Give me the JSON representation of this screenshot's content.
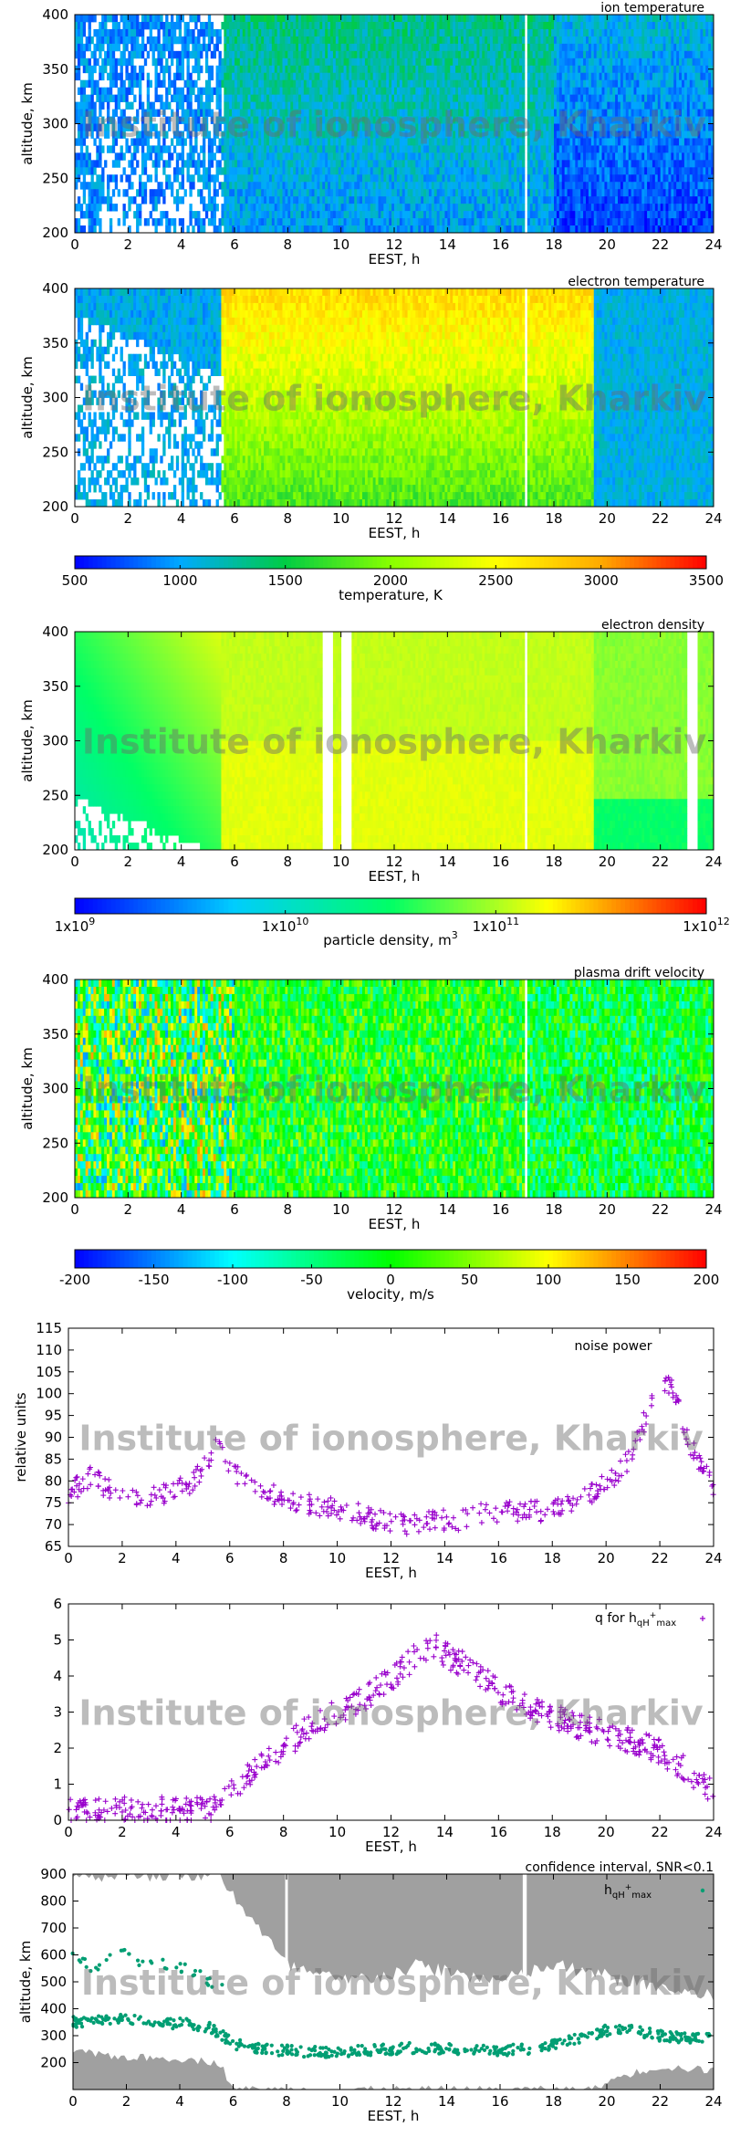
{
  "watermark": "Institute of ionosphere, Kharkiv",
  "palettes": {
    "temperature": [
      "#0000ff",
      "#00aaff",
      "#00cc44",
      "#88ff00",
      "#ffff00",
      "#ffaa00",
      "#ff0000"
    ],
    "density": [
      "#0000ff",
      "#00ccff",
      "#00ff66",
      "#ffff00",
      "#ff0000"
    ],
    "velocity": [
      "#0000ff",
      "#00ffff",
      "#00ff00",
      "#ffff00",
      "#ff0000"
    ],
    "points_purple": "#9900cc",
    "points_teal": "#009e73",
    "band_gray": "#a0a0a0"
  },
  "chart_data": [
    {
      "id": "ion_temperature",
      "type": "heatmap",
      "title": "ion temperature",
      "xlabel": "EEST, h",
      "ylabel": "altitude, km",
      "xlim": [
        0,
        24
      ],
      "ylim": [
        200,
        400
      ],
      "xticks": [
        "0",
        "2",
        "4",
        "6",
        "8",
        "10",
        "12",
        "14",
        "16",
        "18",
        "20",
        "22",
        "24"
      ],
      "yticks": [
        "200",
        "250",
        "300",
        "350",
        "400"
      ],
      "value_range": [
        500,
        3500
      ],
      "data_gaps_h": [
        [
          16.85,
          17.0
        ]
      ]
    },
    {
      "id": "electron_temperature",
      "type": "heatmap",
      "title": "electron temperature",
      "xlabel": "EEST, h",
      "ylabel": "altitude, km",
      "xlim": [
        0,
        24
      ],
      "ylim": [
        200,
        400
      ],
      "xticks": [
        "0",
        "2",
        "4",
        "6",
        "8",
        "10",
        "12",
        "14",
        "16",
        "18",
        "20",
        "22",
        "24"
      ],
      "yticks": [
        "200",
        "250",
        "300",
        "350",
        "400"
      ],
      "value_range": [
        500,
        3500
      ],
      "data_gaps_h": [
        [
          16.85,
          17.0
        ]
      ]
    },
    {
      "id": "temperature_scale",
      "type": "colorbar",
      "label": "temperature, K",
      "range": [
        500,
        3500
      ],
      "ticks": [
        "500",
        "1000",
        "1500",
        "2000",
        "2500",
        "3000",
        "3500"
      ]
    },
    {
      "id": "electron_density",
      "type": "heatmap",
      "title": "electron density",
      "xlabel": "EEST, h",
      "ylabel": "altitude, km",
      "xlim": [
        0,
        24
      ],
      "ylim": [
        200,
        400
      ],
      "xticks": [
        "0",
        "2",
        "4",
        "6",
        "8",
        "10",
        "12",
        "14",
        "16",
        "18",
        "20",
        "22",
        "24"
      ],
      "yticks": [
        "200",
        "250",
        "300",
        "350",
        "400"
      ],
      "value_range_log10": [
        9,
        12
      ],
      "data_gaps_h": [
        [
          9.3,
          9.65
        ],
        [
          10.0,
          10.4
        ],
        [
          16.85,
          17.0
        ],
        [
          23.0,
          23.35
        ]
      ]
    },
    {
      "id": "density_scale",
      "type": "colorbar",
      "label": "particle density, m",
      "label_sup": "3",
      "range_log10": [
        9,
        12
      ],
      "ticks": [
        {
          "base": "1x10",
          "exp": "9"
        },
        {
          "base": "1x10",
          "exp": "10"
        },
        {
          "base": "1x10",
          "exp": "11"
        },
        {
          "base": "1x10",
          "exp": "12"
        }
      ]
    },
    {
      "id": "plasma_drift_velocity",
      "type": "heatmap",
      "title": "plasma drift velocity",
      "xlabel": "EEST, h",
      "ylabel": "altitude, km",
      "xlim": [
        0,
        24
      ],
      "ylim": [
        200,
        400
      ],
      "xticks": [
        "0",
        "2",
        "4",
        "6",
        "8",
        "10",
        "12",
        "14",
        "16",
        "18",
        "20",
        "22",
        "24"
      ],
      "yticks": [
        "200",
        "250",
        "300",
        "350",
        "400"
      ],
      "value_range": [
        -200,
        200
      ],
      "data_gaps_h": [
        [
          16.85,
          17.0
        ]
      ]
    },
    {
      "id": "velocity_scale",
      "type": "colorbar",
      "label": "velocity, m/s",
      "range": [
        -200,
        200
      ],
      "ticks": [
        "-200",
        "-150",
        "-100",
        "-50",
        "0",
        "50",
        "100",
        "150",
        "200"
      ]
    },
    {
      "id": "noise_power",
      "type": "scatter",
      "legend": "noise power",
      "xlabel": "EEST, h",
      "ylabel": "relative units",
      "xlim": [
        0,
        24
      ],
      "ylim": [
        65,
        115
      ],
      "xticks": [
        "0",
        "2",
        "4",
        "6",
        "8",
        "10",
        "12",
        "14",
        "16",
        "18",
        "20",
        "22",
        "24"
      ],
      "yticks": [
        "65",
        "70",
        "75",
        "80",
        "85",
        "90",
        "95",
        "100",
        "105",
        "110",
        "115"
      ],
      "trend_x": [
        0,
        0.8,
        1.5,
        2.5,
        3.5,
        4.5,
        5.0,
        5.5,
        6.0,
        6.5,
        7.5,
        8.5,
        9.5,
        10.5,
        11.5,
        12.5,
        13.5,
        14.5,
        15.5,
        16.5,
        17.5,
        18.5,
        19.5,
        20.5,
        21.0,
        21.5,
        22.0,
        22.5,
        23.0,
        24.0
      ],
      "trend_y": [
        77,
        81,
        78,
        76,
        77,
        79,
        83,
        88,
        83,
        80,
        77,
        75,
        74,
        73,
        71,
        70,
        71,
        71,
        73,
        73,
        73,
        75,
        77,
        82,
        86,
        95,
        102,
        101,
        90,
        79
      ]
    },
    {
      "id": "q_factor",
      "type": "scatter",
      "legend_main": "q for h",
      "legend_sub": "qH",
      "legend_sup": "+",
      "legend_sub2": "max",
      "xlabel": "EEST, h",
      "xlim": [
        0,
        24
      ],
      "ylim": [
        0,
        6
      ],
      "xticks": [
        "0",
        "2",
        "4",
        "6",
        "8",
        "10",
        "12",
        "14",
        "16",
        "18",
        "20",
        "22",
        "24"
      ],
      "yticks": [
        "0",
        "1",
        "2",
        "3",
        "4",
        "5",
        "6"
      ],
      "trend_x": [
        0,
        2,
        4,
        5.3,
        6,
        7,
        8,
        9,
        10,
        11,
        12,
        13,
        13.5,
        14,
        15,
        16,
        17,
        18,
        19,
        20,
        21,
        22,
        23,
        24
      ],
      "trend_y": [
        0.25,
        0.3,
        0.3,
        0.3,
        0.8,
        1.4,
        2.0,
        2.6,
        3.0,
        3.4,
        3.9,
        4.6,
        4.9,
        4.6,
        4.2,
        3.6,
        3.2,
        2.9,
        2.6,
        2.4,
        2.2,
        1.9,
        1.4,
        0.8
      ]
    },
    {
      "id": "confidence_interval",
      "type": "scatter",
      "title": "confidence interval, SNR<0.1",
      "legend_main": "h",
      "legend_sub": "qH",
      "legend_sup": "+",
      "legend_sub2": "max",
      "xlabel": "EEST, h",
      "ylabel": "altitude, km",
      "xlim": [
        0,
        24
      ],
      "ylim": [
        100,
        900
      ],
      "xticks": [
        "0",
        "2",
        "4",
        "6",
        "8",
        "10",
        "12",
        "14",
        "16",
        "18",
        "20",
        "22",
        "24"
      ],
      "yticks": [
        "200",
        "300",
        "400",
        "500",
        "600",
        "700",
        "800",
        "900"
      ],
      "upper_bound_x": [
        0,
        5,
        5.6,
        6.5,
        8,
        10,
        12,
        13,
        14,
        16,
        18,
        20,
        22,
        24
      ],
      "upper_bound_y": [
        900,
        900,
        880,
        760,
        560,
        500,
        530,
        560,
        540,
        500,
        560,
        520,
        480,
        440
      ],
      "lower_bound_x": [
        0,
        2,
        4,
        5.5,
        6,
        8,
        12,
        16,
        19.5,
        20.5,
        22,
        24
      ],
      "lower_bound_y": [
        240,
        220,
        215,
        200,
        100,
        100,
        100,
        100,
        100,
        150,
        185,
        170
      ],
      "hmax_x": [
        0,
        1,
        2,
        3,
        4,
        5,
        5.6,
        6,
        7,
        8,
        9,
        10,
        11,
        12,
        13,
        14,
        15,
        16,
        17,
        18,
        19,
        20,
        21,
        22,
        23,
        24
      ],
      "hmax_y": [
        350,
        355,
        360,
        350,
        345,
        335,
        300,
        270,
        250,
        245,
        240,
        240,
        245,
        250,
        255,
        250,
        245,
        245,
        250,
        270,
        290,
        320,
        320,
        300,
        290,
        295
      ],
      "scattered_x": [
        0.2,
        0.8,
        1.6,
        2.4,
        3.2,
        4.0,
        4.8,
        5.3
      ],
      "scattered_y": [
        590,
        560,
        600,
        580,
        560,
        550,
        520,
        500
      ]
    }
  ]
}
